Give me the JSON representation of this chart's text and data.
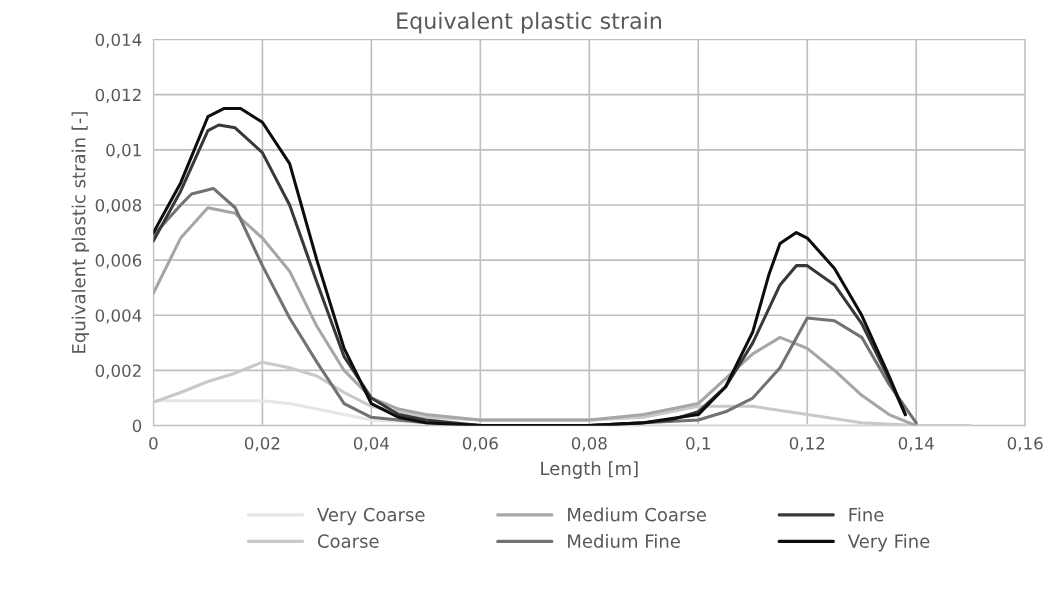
{
  "chart_data": {
    "type": "line",
    "title": "Equivalent plastic strain",
    "xlabel": "Length [m]",
    "ylabel": "Equivalent plastic strain [-]",
    "xlim": [
      0,
      0.16
    ],
    "xticks": [
      0,
      {
        "value": 0.02,
        "label": "0,02"
      },
      {
        "value": 0.04,
        "label": "0,04"
      },
      {
        "value": 0.06,
        "label": "0,06"
      },
      {
        "value": 0.08,
        "label": "0,08"
      },
      {
        "value": 0.1,
        "label": "0,1"
      },
      {
        "value": 0.12,
        "label": "0,12"
      },
      {
        "value": 0.14,
        "label": "0,14"
      },
      {
        "value": 0.16,
        "label": "0,16"
      }
    ],
    "ylim": [
      0,
      0.014
    ],
    "yticks": [
      0,
      {
        "value": 0.002,
        "label": "0,002"
      },
      {
        "value": 0.004,
        "label": "0,004"
      },
      {
        "value": 0.006,
        "label": "0,006"
      },
      {
        "value": 0.008,
        "label": "0,008"
      },
      {
        "value": 0.01,
        "label": "0,01"
      },
      {
        "value": 0.012,
        "label": "0,012"
      },
      {
        "value": 0.014,
        "label": "0,014"
      }
    ],
    "grid": true,
    "legend": "bottom",
    "marker": "none",
    "line_style": "solid",
    "series": [
      {
        "name": "Very Coarse",
        "color": "#e7e6e6",
        "x": [
          0,
          0.01,
          0.02,
          0.025,
          0.03,
          0.04,
          0.05,
          0.06,
          0.07,
          0.08,
          0.09,
          0.1,
          0.11,
          0.12,
          0.13,
          0.14,
          0.15
        ],
        "values": [
          0.0009,
          0.0009,
          0.0009,
          0.0008,
          0.0006,
          0.0002,
          0.0001,
          0,
          0,
          0,
          0,
          0,
          0,
          0,
          0,
          0,
          0
        ]
      },
      {
        "name": "Coarse",
        "color": "#c9c9c9",
        "x": [
          0,
          0.005,
          0.01,
          0.015,
          0.02,
          0.025,
          0.03,
          0.035,
          0.04,
          0.05,
          0.06,
          0.07,
          0.08,
          0.09,
          0.1,
          0.11,
          0.12,
          0.13,
          0.14,
          0.15
        ],
        "values": [
          0.00085,
          0.0012,
          0.0016,
          0.0019,
          0.0023,
          0.0021,
          0.0018,
          0.0012,
          0.0007,
          0.0003,
          0.0002,
          0.0002,
          0.0002,
          0.0003,
          0.0007,
          0.0007,
          0.0004,
          0.0001,
          0,
          0
        ]
      },
      {
        "name": "Medium Coarse",
        "color": "#a6a6a6",
        "x": [
          0,
          0.005,
          0.01,
          0.015,
          0.02,
          0.025,
          0.03,
          0.035,
          0.04,
          0.045,
          0.05,
          0.06,
          0.07,
          0.08,
          0.09,
          0.1,
          0.105,
          0.11,
          0.115,
          0.12,
          0.125,
          0.13,
          0.135,
          0.14
        ],
        "values": [
          0.0048,
          0.0068,
          0.0079,
          0.0077,
          0.0068,
          0.0056,
          0.0036,
          0.002,
          0.001,
          0.0006,
          0.0004,
          0.0002,
          0.0002,
          0.0002,
          0.0004,
          0.0008,
          0.0017,
          0.0026,
          0.0032,
          0.0028,
          0.002,
          0.0011,
          0.0004,
          0
        ]
      },
      {
        "name": "Medium Fine",
        "color": "#767171",
        "x": [
          0,
          0.005,
          0.007,
          0.011,
          0.015,
          0.02,
          0.025,
          0.03,
          0.035,
          0.04,
          0.05,
          0.06,
          0.07,
          0.08,
          0.09,
          0.1,
          0.105,
          0.11,
          0.115,
          0.12,
          0.125,
          0.13,
          0.135,
          0.14
        ],
        "values": [
          0.0069,
          0.008,
          0.0084,
          0.0086,
          0.0079,
          0.0058,
          0.0039,
          0.0023,
          0.0008,
          0.0003,
          0.0001,
          0,
          0,
          0,
          0.0001,
          0.0002,
          0.0005,
          0.001,
          0.0021,
          0.0039,
          0.0038,
          0.0032,
          0.0015,
          0.0001
        ]
      },
      {
        "name": "Fine",
        "color": "#3b3838",
        "x": [
          0,
          0.005,
          0.01,
          0.012,
          0.015,
          0.02,
          0.025,
          0.03,
          0.035,
          0.04,
          0.045,
          0.05,
          0.06,
          0.07,
          0.08,
          0.09,
          0.095,
          0.1,
          0.105,
          0.11,
          0.115,
          0.118,
          0.12,
          0.125,
          0.13,
          0.135,
          0.138
        ],
        "values": [
          0.0067,
          0.0085,
          0.0107,
          0.0109,
          0.0108,
          0.0099,
          0.008,
          0.0052,
          0.0025,
          0.001,
          0.0004,
          0.0002,
          0,
          0,
          0,
          0.0001,
          0.0002,
          0.0005,
          0.0014,
          0.003,
          0.0051,
          0.0058,
          0.0058,
          0.0051,
          0.0037,
          0.0017,
          0.0004
        ]
      },
      {
        "name": "Very Fine",
        "color": "#0d0d0d",
        "x": [
          0,
          0.005,
          0.01,
          0.013,
          0.016,
          0.02,
          0.025,
          0.03,
          0.035,
          0.04,
          0.045,
          0.05,
          0.06,
          0.07,
          0.08,
          0.09,
          0.1,
          0.105,
          0.11,
          0.113,
          0.115,
          0.118,
          0.12,
          0.125,
          0.13,
          0.135,
          0.138
        ],
        "values": [
          0.007,
          0.0088,
          0.0112,
          0.0115,
          0.0115,
          0.011,
          0.0095,
          0.006,
          0.0028,
          0.0008,
          0.0003,
          0.0001,
          0,
          0,
          0,
          0.0001,
          0.0004,
          0.0014,
          0.0034,
          0.0055,
          0.0066,
          0.007,
          0.0068,
          0.0057,
          0.004,
          0.0018,
          0.0004
        ]
      }
    ]
  }
}
